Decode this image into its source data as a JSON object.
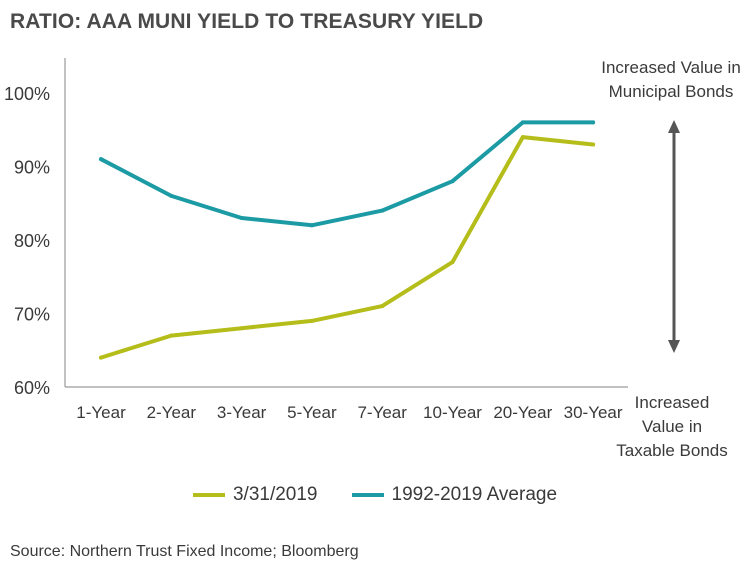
{
  "title": "RATIO: AAA MUNI YIELD TO TREASURY YIELD",
  "source": "Source: Northern Trust Fixed Income; Bloomberg",
  "annotations": {
    "top": [
      "Increased Value in",
      "Municipal Bonds"
    ],
    "bottom": [
      "Increased",
      "Value in",
      "Taxable Bonds"
    ]
  },
  "colors": {
    "series_current": "#b5bd1a",
    "series_average": "#1c9ba4",
    "axis": "#9a9a9a",
    "arrow": "#555555"
  },
  "chart_data": {
    "type": "line",
    "categories": [
      "1-Year",
      "2-Year",
      "3-Year",
      "5-Year",
      "7-Year",
      "10-Year",
      "20-Year",
      "30-Year"
    ],
    "series": [
      {
        "name": "3/31/2019",
        "values": [
          64,
          67,
          68,
          69,
          71,
          77,
          94,
          93
        ]
      },
      {
        "name": "1992-2019 Average",
        "values": [
          91,
          86,
          83,
          82,
          84,
          88,
          96,
          96
        ]
      }
    ],
    "yticks": [
      "60%",
      "70%",
      "80%",
      "90%",
      "100%"
    ],
    "ytick_values": [
      60,
      70,
      80,
      90,
      100
    ],
    "ylim": [
      60,
      105
    ],
    "grid": false,
    "legend_position": "bottom"
  }
}
